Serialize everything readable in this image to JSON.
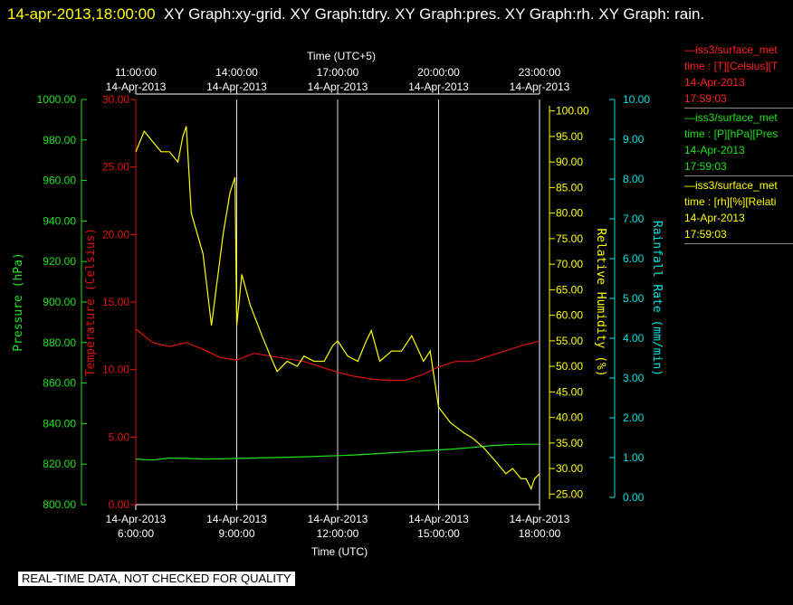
{
  "header": {
    "date": "14-apr-2013,18:00:00",
    "title": "XY Graph:xy-grid.  XY Graph:tdry.  XY Graph:pres.  XY Graph:rh.  XY Graph: rain."
  },
  "legend": [
    {
      "name": "—iss3/surface_met",
      "sub": "time : [T][Celsius][T",
      "date": "14-Apr-2013",
      "time": "17:59:03",
      "color": "#ff2020"
    },
    {
      "name": "—iss3/surface_met",
      "sub": "time : [P][hPa][Pres",
      "date": "14-Apr-2013",
      "time": "17:59:03",
      "color": "#20e020"
    },
    {
      "name": "—iss3/surface_met",
      "sub": "time : [rh][%][Relati",
      "date": "14-Apr-2013",
      "time": "17:59:03",
      "color": "#ffff00"
    }
  ],
  "notice": "REAL-TIME DATA, NOT CHECKED FOR QUALITY",
  "colors": {
    "temperature": "#e01010",
    "pressure": "#20e020",
    "rh": "#ffff00",
    "rain": "#00e0e0",
    "grid": "#dddddd",
    "axis": "#ffffff"
  },
  "chart_data": {
    "type": "line",
    "x_bottom_label": "Time (UTC)",
    "x_top_label": "Time (UTC+5)",
    "x_range_hours_utc": [
      6,
      18
    ],
    "bottom_ticks": [
      {
        "date": "14-Apr-2013",
        "time": "6:00:00",
        "hour": 6
      },
      {
        "date": "14-Apr-2013",
        "time": "9:00:00",
        "hour": 9
      },
      {
        "date": "14-Apr-2013",
        "time": "12:00:00",
        "hour": 12
      },
      {
        "date": "14-Apr-2013",
        "time": "15:00:00",
        "hour": 15
      },
      {
        "date": "14-Apr-2013",
        "time": "18:00:00",
        "hour": 18
      }
    ],
    "top_ticks": [
      {
        "date": "14-Apr-2013",
        "time": "11:00:00",
        "hour": 6
      },
      {
        "date": "14-Apr-2013",
        "time": "14:00:00",
        "hour": 9
      },
      {
        "date": "14-Apr-2013",
        "time": "17:00:00",
        "hour": 12
      },
      {
        "date": "14-Apr-2013",
        "time": "20:00:00",
        "hour": 15
      },
      {
        "date": "14-Apr-2013",
        "time": "23:00:00",
        "hour": 18
      }
    ],
    "grid_hours": [
      9,
      12,
      15
    ],
    "axes": {
      "pressure": {
        "label": "Pressure (hPa)",
        "range": [
          800,
          1000
        ],
        "ticks": [
          "800.00",
          "820.00",
          "840.00",
          "860.00",
          "880.00",
          "900.00",
          "920.00",
          "940.00",
          "960.00",
          "980.00",
          "1000.00"
        ]
      },
      "temperature": {
        "label": "Temperature (Celsius)",
        "range": [
          0,
          30
        ],
        "ticks": [
          "0.00",
          "5.00",
          "10.00",
          "15.00",
          "20.00",
          "25.00",
          "30.00"
        ]
      },
      "rh": {
        "label": "Relative Humidity (%)",
        "range": [
          24,
          101
        ],
        "ticks": [
          "25.00",
          "30.00",
          "35.00",
          "40.00",
          "45.00",
          "50.00",
          "55.00",
          "60.00",
          "65.00",
          "70.00",
          "75.00",
          "80.00",
          "85.00",
          "90.00",
          "95.00",
          "100.00"
        ]
      },
      "rain": {
        "label": "Rainfall Rate (mm/min)",
        "range": [
          0,
          10
        ],
        "ticks": [
          "0.00",
          "1.00",
          "2.00",
          "3.00",
          "4.00",
          "5.00",
          "6.00",
          "7.00",
          "8.00",
          "9.00",
          "10.00"
        ]
      }
    },
    "series": [
      {
        "name": "[T][Celsius]",
        "axis": "temperature",
        "x": [
          6.0,
          6.5,
          7.0,
          7.5,
          8.0,
          8.5,
          9.0,
          9.5,
          10.0,
          10.5,
          11.0,
          11.5,
          12.0,
          12.5,
          13.0,
          13.5,
          14.0,
          14.5,
          15.0,
          15.5,
          16.0,
          16.5,
          17.0,
          17.5,
          18.0
        ],
        "y": [
          13.0,
          12.0,
          11.7,
          12.0,
          11.5,
          10.9,
          10.7,
          11.2,
          11.0,
          10.8,
          10.6,
          10.2,
          9.8,
          9.5,
          9.3,
          9.2,
          9.2,
          9.6,
          10.2,
          10.6,
          10.6,
          11.0,
          11.4,
          11.8,
          12.1
        ]
      },
      {
        "name": "[P][hPa]",
        "axis": "pressure",
        "x": [
          6.0,
          6.5,
          7.0,
          7.5,
          8.0,
          8.5,
          9.0,
          9.5,
          10.0,
          10.5,
          11.0,
          11.5,
          12.0,
          12.5,
          13.0,
          13.5,
          14.0,
          14.5,
          15.0,
          15.5,
          16.0,
          16.5,
          17.0,
          17.5,
          18.0
        ],
        "y": [
          822.5,
          822.0,
          823.0,
          822.8,
          822.5,
          822.6,
          822.8,
          823.0,
          823.2,
          823.4,
          823.6,
          823.9,
          824.2,
          824.5,
          825.0,
          825.5,
          826.0,
          826.5,
          827.0,
          827.5,
          828.2,
          829.0,
          829.5,
          829.8,
          829.8
        ]
      },
      {
        "name": "[rh][%]",
        "axis": "rh",
        "x": [
          6.0,
          6.25,
          6.5,
          6.75,
          7.0,
          7.25,
          7.4,
          7.5,
          7.65,
          8.0,
          8.25,
          8.6,
          8.8,
          8.95,
          9.0,
          9.15,
          9.4,
          9.75,
          10.0,
          10.2,
          10.5,
          10.8,
          11.0,
          11.3,
          11.6,
          11.85,
          12.0,
          12.3,
          12.6,
          12.85,
          13.0,
          13.25,
          13.6,
          13.9,
          14.2,
          14.55,
          14.75,
          15.0,
          15.35,
          15.75,
          16.0,
          16.35,
          16.75,
          17.0,
          17.2,
          17.45,
          17.6,
          17.75,
          17.85,
          18.0
        ],
        "y": [
          92,
          96,
          94,
          92,
          92,
          90,
          95,
          97,
          80,
          72,
          58,
          76,
          84,
          87,
          58,
          68,
          62,
          56,
          52,
          49,
          51,
          50,
          52,
          51,
          51,
          54,
          55,
          52,
          51,
          55,
          57,
          51,
          53,
          53,
          56,
          51,
          53,
          42,
          39,
          37,
          36,
          34,
          31,
          29,
          30,
          28,
          28,
          26,
          28,
          29
        ]
      },
      {
        "name": "[rain]",
        "axis": "rain",
        "x": [],
        "y": []
      }
    ]
  }
}
